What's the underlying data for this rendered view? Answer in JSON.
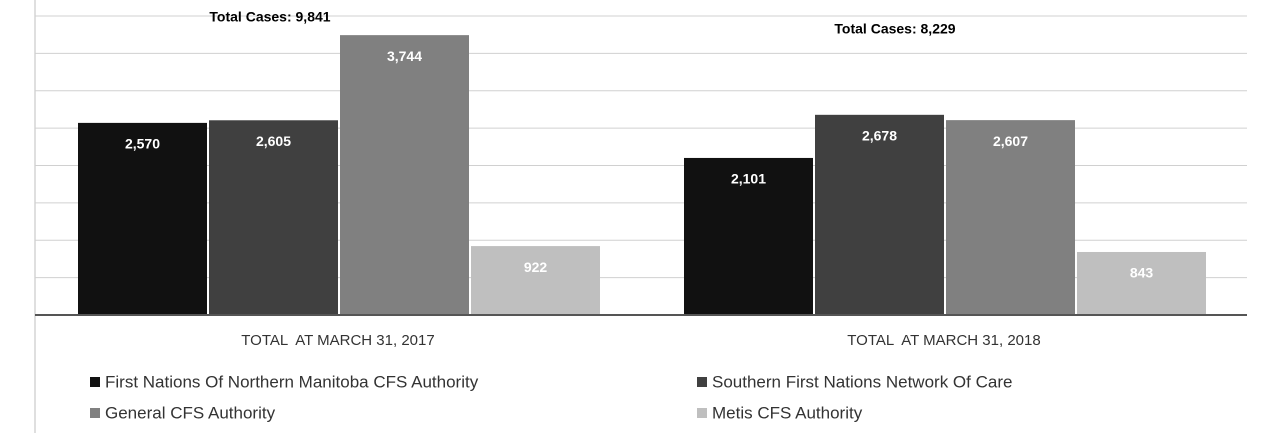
{
  "chart_data": {
    "type": "bar",
    "categories": [
      "TOTAL  AT MARCH 31, 2017",
      "TOTAL  AT MARCH 31, 2018"
    ],
    "series": [
      {
        "name": "First Nations Of Northern Manitoba CFS Authority",
        "color": "#111111",
        "values": [
          2570,
          2101
        ],
        "value_labels": [
          "2,570",
          "2,101"
        ]
      },
      {
        "name": "Southern First Nations Network Of Care",
        "color": "#404040",
        "values": [
          2605,
          2678
        ],
        "value_labels": [
          "2,605",
          "2,678"
        ]
      },
      {
        "name": "General CFS Authority",
        "color": "#808080",
        "values": [
          3744,
          2607
        ],
        "value_labels": [
          "3,744",
          "2,607"
        ]
      },
      {
        "name": "Metis CFS Authority",
        "color": "#bfbfbf",
        "values": [
          922,
          843
        ],
        "value_labels": [
          "922",
          "843"
        ]
      }
    ],
    "annotations": [
      "Total Cases: 9,841",
      "Total Cases: 8,229"
    ],
    "ylim": [
      0,
      4000
    ],
    "yticks": [
      0,
      500,
      1000,
      1500,
      2000,
      2500,
      3000,
      3500,
      4000
    ],
    "grid": true
  }
}
